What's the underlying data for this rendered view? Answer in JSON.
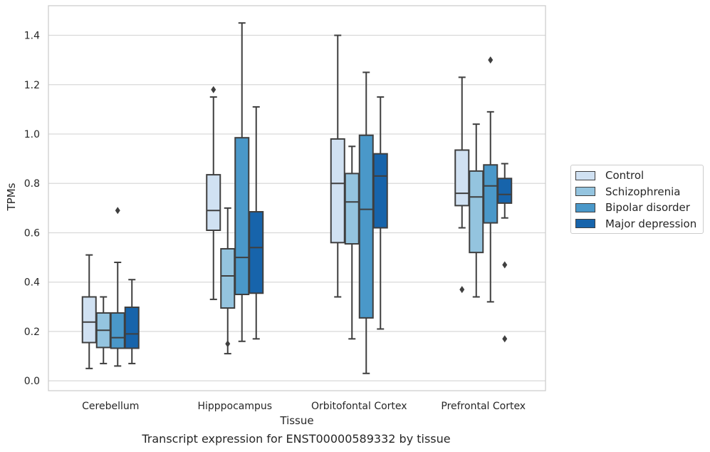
{
  "caption": "Transcript expression for ENST00000589332 by tissue",
  "legend_title": "",
  "chart_data": {
    "type": "box",
    "title": "",
    "xlabel": "Tissue",
    "ylabel": "TPMs",
    "ylim": [
      -0.04,
      1.52
    ],
    "yticks": [
      0.0,
      0.2,
      0.4,
      0.6,
      0.8,
      1.0,
      1.2,
      1.4
    ],
    "ytick_labels": [
      "0.0",
      "0.2",
      "0.4",
      "0.6",
      "0.8",
      "1.0",
      "1.2",
      "1.4"
    ],
    "grid": "horizontal",
    "legend_position": "right",
    "categories": [
      "Cerebellum",
      "Hipppocampus",
      "Orbitofontal Cortex",
      "Prefrontal Cortex"
    ],
    "series": [
      {
        "name": "Control",
        "color": "#d0e1f2",
        "boxes": [
          {
            "whislo": 0.05,
            "q1": 0.155,
            "med": 0.238,
            "q3": 0.34,
            "whishi": 0.51,
            "fliers": []
          },
          {
            "whislo": 0.33,
            "q1": 0.61,
            "med": 0.69,
            "q3": 0.835,
            "whishi": 1.15,
            "fliers": [
              1.18
            ]
          },
          {
            "whislo": 0.34,
            "q1": 0.56,
            "med": 0.8,
            "q3": 0.98,
            "whishi": 1.4,
            "fliers": []
          },
          {
            "whislo": 0.62,
            "q1": 0.71,
            "med": 0.76,
            "q3": 0.935,
            "whishi": 1.23,
            "fliers": [
              0.37
            ]
          }
        ]
      },
      {
        "name": "Schizophrenia",
        "color": "#94c4df",
        "boxes": [
          {
            "whislo": 0.07,
            "q1": 0.135,
            "med": 0.205,
            "q3": 0.275,
            "whishi": 0.34,
            "fliers": []
          },
          {
            "whislo": 0.11,
            "q1": 0.295,
            "med": 0.425,
            "q3": 0.535,
            "whishi": 0.7,
            "fliers": [
              0.15
            ]
          },
          {
            "whislo": 0.17,
            "q1": 0.555,
            "med": 0.725,
            "q3": 0.84,
            "whishi": 0.95,
            "fliers": []
          },
          {
            "whislo": 0.34,
            "q1": 0.52,
            "med": 0.745,
            "q3": 0.85,
            "whishi": 1.04,
            "fliers": []
          }
        ]
      },
      {
        "name": "Bipolar disorder",
        "color": "#4a98c9",
        "boxes": [
          {
            "whislo": 0.06,
            "q1": 0.132,
            "med": 0.175,
            "q3": 0.275,
            "whishi": 0.48,
            "fliers": [
              0.69
            ]
          },
          {
            "whislo": 0.16,
            "q1": 0.35,
            "med": 0.5,
            "q3": 0.985,
            "whishi": 1.45,
            "fliers": []
          },
          {
            "whislo": 0.03,
            "q1": 0.255,
            "med": 0.695,
            "q3": 0.995,
            "whishi": 1.25,
            "fliers": []
          },
          {
            "whislo": 0.32,
            "q1": 0.64,
            "med": 0.79,
            "q3": 0.875,
            "whishi": 1.09,
            "fliers": [
              1.3
            ]
          }
        ]
      },
      {
        "name": "Major depression",
        "color": "#1764ab",
        "boxes": [
          {
            "whislo": 0.07,
            "q1": 0.132,
            "med": 0.19,
            "q3": 0.298,
            "whishi": 0.41,
            "fliers": []
          },
          {
            "whislo": 0.17,
            "q1": 0.355,
            "med": 0.54,
            "q3": 0.685,
            "whishi": 1.11,
            "fliers": []
          },
          {
            "whislo": 0.21,
            "q1": 0.62,
            "med": 0.83,
            "q3": 0.92,
            "whishi": 1.15,
            "fliers": []
          },
          {
            "whislo": 0.66,
            "q1": 0.72,
            "med": 0.755,
            "q3": 0.82,
            "whishi": 0.88,
            "fliers": [
              0.47,
              0.17
            ]
          }
        ]
      }
    ]
  }
}
